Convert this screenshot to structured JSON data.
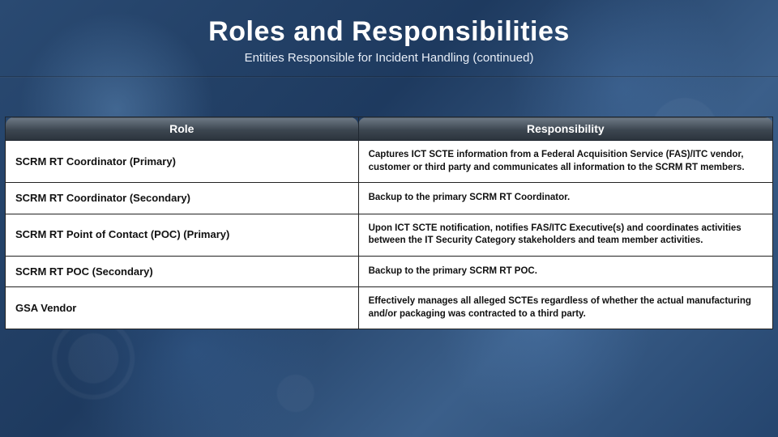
{
  "header": {
    "title": "Roles and Responsibilities",
    "subtitle": "Entities Responsible for Incident Handling (continued)"
  },
  "table": {
    "columns": [
      "Role",
      "Responsibility"
    ],
    "col_widths_pct": [
      46,
      54
    ],
    "header_bg_gradient": [
      "#6e7a86",
      "#3c4650",
      "#2b333c"
    ],
    "header_text_color": "#ffffff",
    "cell_bg": "#ffffff",
    "cell_text_color": "#111111",
    "border_color": "#222222",
    "role_fontsize_pt": 10,
    "resp_fontsize_pt": 9,
    "font_weight": 700,
    "rows": [
      {
        "role": "SCRM RT Coordinator (Primary)",
        "responsibility": "Captures ICT SCTE information from a Federal Acquisition Service (FAS)/ITC vendor, customer or third party and communicates all information to the SCRM RT members."
      },
      {
        "role": "SCRM RT Coordinator (Secondary)",
        "responsibility": "Backup to the primary SCRM RT Coordinator."
      },
      {
        "role": "SCRM RT Point of Contact (POC) (Primary)",
        "responsibility": "Upon ICT SCTE notification, notifies FAS/ITC Executive(s) and coordinates activities between the IT Security Category stakeholders and team member activities."
      },
      {
        "role": "SCRM RT POC (Secondary)",
        "responsibility": "Backup to the primary SCRM RT POC."
      },
      {
        "role": "GSA Vendor",
        "responsibility": "Effectively manages all alleged SCTEs regardless of whether the actual manufacturing and/or packaging was contracted to a third party."
      }
    ]
  },
  "colors": {
    "title_color": "#ffffff",
    "subtitle_color": "#e8eef7",
    "background_gradient": [
      "#2a4a72",
      "#1e3a5f",
      "#3b5f8a",
      "#25456e"
    ]
  },
  "typography": {
    "title_fontsize_pt": 26,
    "subtitle_fontsize_pt": 11,
    "font_family": "Segoe UI, Arial, sans-serif"
  }
}
